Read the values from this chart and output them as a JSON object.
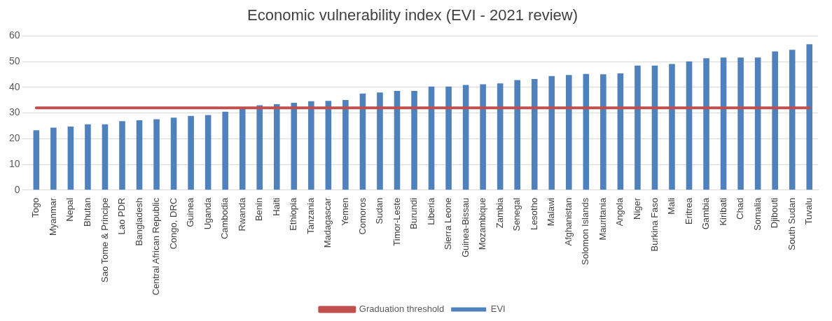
{
  "chart_data": {
    "type": "bar",
    "title": "Economic vulnerability index (EVI - 2021 review)",
    "categories": [
      "Togo",
      "Myanmar",
      "Nepal",
      "Bhutan",
      "Sao Tome & Principe",
      "Lao PDR",
      "Bangladesh",
      "Central African Republic",
      "Congo, DRC",
      "Guinea",
      "Uganda",
      "Cambodia",
      "Rwanda",
      "Benin",
      "Haiti",
      "Ethiopia",
      "Tanzania",
      "Madagascar",
      "Yemen",
      "Comoros",
      "Sudan",
      "Timor-Leste",
      "Burundi",
      "Liberia",
      "Sierra Leone",
      "Guinea-Bissau",
      "Mozambique",
      "Zambia",
      "Senegal",
      "Lesotho",
      "Malawi",
      "Afghanistan",
      "Solomon Islands",
      "Mauritania",
      "Angola",
      "Niger",
      "Burkina Faso",
      "Mali",
      "Eritrea",
      "Gambia",
      "Kiribati",
      "Chad",
      "Somalia",
      "Djibouti",
      "South Sudan",
      "Tuvalu"
    ],
    "series": [
      {
        "name": "EVI",
        "color": "#4f81bd",
        "values": [
          23.3,
          24.3,
          24.7,
          25.6,
          25.6,
          26.8,
          27.2,
          27.6,
          28.2,
          28.9,
          29.2,
          30.5,
          31.8,
          33.0,
          33.4,
          34.0,
          34.6,
          34.7,
          35.1,
          37.6,
          38.0,
          38.6,
          38.6,
          40.3,
          40.3,
          40.9,
          41.2,
          41.5,
          42.8,
          43.2,
          44.4,
          44.8,
          45.2,
          45.1,
          45.4,
          48.5,
          48.5,
          49.1,
          50.1,
          51.3,
          51.6,
          51.6,
          51.6,
          54.0,
          54.6,
          56.8
        ]
      },
      {
        "name": "Graduation threshold",
        "type": "line",
        "color": "#c0504d",
        "values": [
          32,
          32,
          32,
          32,
          32,
          32,
          32,
          32,
          32,
          32,
          32,
          32,
          32,
          32,
          32,
          32,
          32,
          32,
          32,
          32,
          32,
          32,
          32,
          32,
          32,
          32,
          32,
          32,
          32,
          32,
          32,
          32,
          32,
          32,
          32,
          32,
          32,
          32,
          32,
          32,
          32,
          32,
          32,
          32,
          32,
          32
        ]
      }
    ],
    "ylim": [
      0,
      60
    ],
    "yticks": [
      0,
      10,
      20,
      30,
      40,
      50,
      60
    ],
    "grid": "y",
    "legend": "bottom",
    "line_style": "solid",
    "marker": "none"
  }
}
